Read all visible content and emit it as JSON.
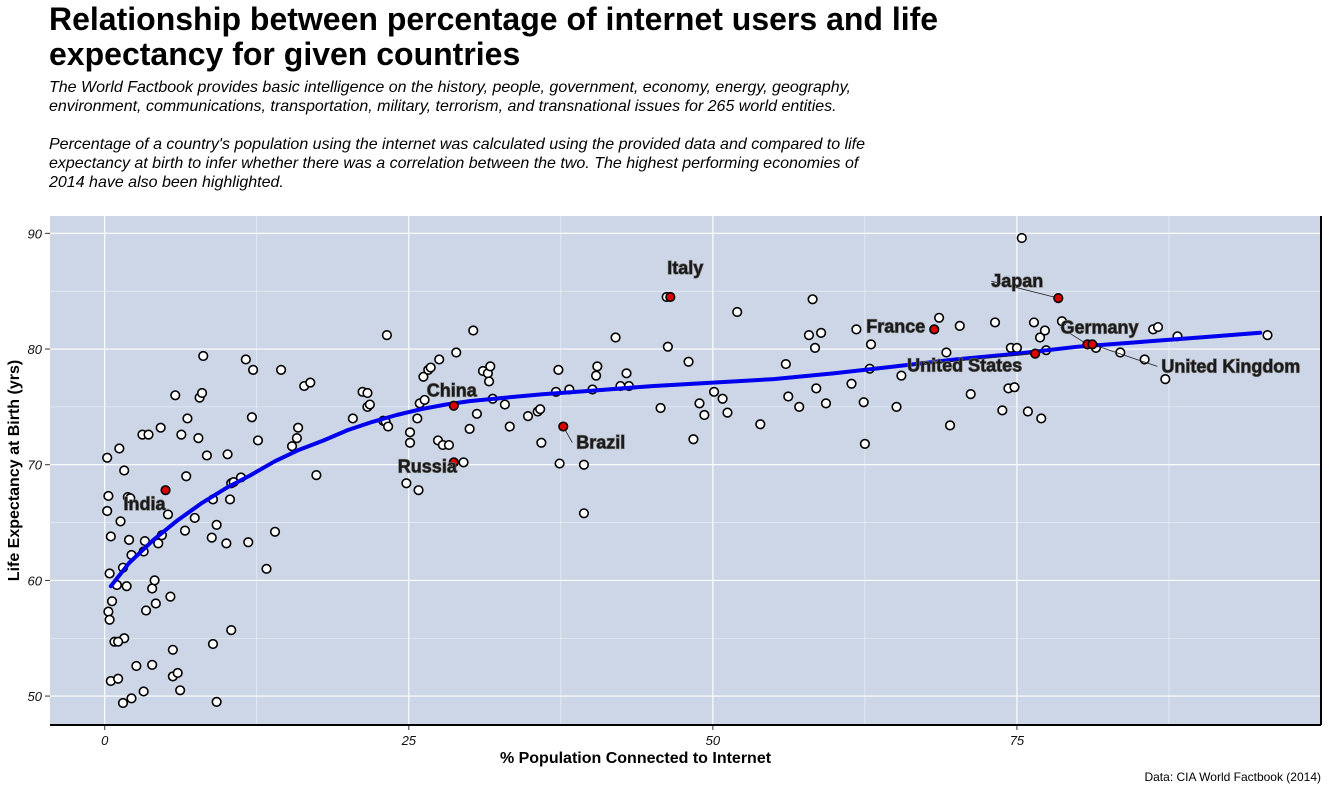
{
  "title": "Relationship between percentage of internet users and life expectancy for given countries",
  "subtitle_1": "The World Factbook provides basic intelligence on the history, people, government, economy, energy, geography, environment, communications, transportation, military, terrorism, and transnational issues for 265 world entities.",
  "subtitle_2": "Percentage of a country's population using the internet was calculated using the provided data and compared to life expectancy at birth to infer whether there was a correlation between the two. The highest performing economies of 2014 have also been highlighted.",
  "caption": "Data: CIA World Factbook (2014)",
  "colors": {
    "panel": "#cdd6e6",
    "grid": "#ffffff",
    "trend": "#0000ee",
    "highlight": "#dd0000",
    "point": "#ffffff",
    "point_stroke": "#000000"
  },
  "chart_data": {
    "type": "scatter",
    "xlabel": "% Population Connected to Internet",
    "ylabel": "Life Expectancy at Birth (yrs)",
    "xlim": [
      -4.5,
      100
    ],
    "ylim": [
      47.5,
      91.5
    ],
    "x_ticks": [
      0,
      25,
      50,
      75
    ],
    "y_ticks": [
      50,
      60,
      70,
      80,
      90
    ],
    "grid": true,
    "trend_line": [
      [
        0.5,
        59.5
      ],
      [
        2,
        61.5
      ],
      [
        4,
        63.5
      ],
      [
        6,
        65.2
      ],
      [
        8,
        66.7
      ],
      [
        10,
        68
      ],
      [
        12,
        69.1
      ],
      [
        14,
        70.3
      ],
      [
        16,
        71.3
      ],
      [
        18,
        72.1
      ],
      [
        20,
        73
      ],
      [
        22,
        73.7
      ],
      [
        24,
        74.3
      ],
      [
        26,
        74.8
      ],
      [
        28,
        75.2
      ],
      [
        30,
        75.5
      ],
      [
        33,
        75.8
      ],
      [
        36,
        76.1
      ],
      [
        40,
        76.4
      ],
      [
        45,
        76.8
      ],
      [
        50,
        77.1
      ],
      [
        55,
        77.4
      ],
      [
        60,
        77.9
      ],
      [
        65,
        78.5
      ],
      [
        70,
        79.1
      ],
      [
        75,
        79.6
      ],
      [
        80,
        80.2
      ],
      [
        85,
        80.6
      ],
      [
        90,
        81
      ],
      [
        95,
        81.4
      ]
    ],
    "highlighted": [
      {
        "name": "India",
        "x": 5,
        "y": 67.8
      },
      {
        "name": "China",
        "x": 28.7,
        "y": 75.1
      },
      {
        "name": "Russia",
        "x": 28.7,
        "y": 70.2
      },
      {
        "name": "Brazil",
        "x": 37.7,
        "y": 73.3
      },
      {
        "name": "Italy",
        "x": 46.5,
        "y": 84.5
      },
      {
        "name": "France",
        "x": 68.2,
        "y": 81.7
      },
      {
        "name": "Japan",
        "x": 78.4,
        "y": 84.4
      },
      {
        "name": "Germany",
        "x": 80.8,
        "y": 80.4
      },
      {
        "name": "United States",
        "x": 76.5,
        "y": 79.6
      },
      {
        "name": "United Kingdom",
        "x": 81.2,
        "y": 80.4
      }
    ],
    "points": [
      [
        0.2,
        70.6
      ],
      [
        0.3,
        67.3
      ],
      [
        0.2,
        66
      ],
      [
        0.5,
        63.8
      ],
      [
        0.3,
        57.3
      ],
      [
        0.4,
        56.6
      ],
      [
        0.6,
        58.2
      ],
      [
        0.4,
        60.6
      ],
      [
        0.8,
        54.7
      ],
      [
        0.5,
        51.3
      ],
      [
        1.1,
        51.5
      ],
      [
        1.5,
        49.4
      ],
      [
        1.2,
        71.4
      ],
      [
        1.6,
        69.5
      ],
      [
        1.9,
        67.2
      ],
      [
        1.3,
        65.1
      ],
      [
        1.5,
        61.1
      ],
      [
        1.8,
        59.5
      ],
      [
        1,
        59.6
      ],
      [
        1.6,
        55
      ],
      [
        1.1,
        54.7
      ],
      [
        2.1,
        67.1
      ],
      [
        2,
        63.5
      ],
      [
        2.2,
        62.2
      ],
      [
        2.6,
        52.6
      ],
      [
        2.2,
        49.8
      ],
      [
        3.1,
        72.6
      ],
      [
        3.3,
        63.4
      ],
      [
        3.2,
        62.5
      ],
      [
        3.4,
        57.4
      ],
      [
        3.2,
        50.4
      ],
      [
        3.6,
        72.6
      ],
      [
        3.9,
        59.3
      ],
      [
        4.1,
        60
      ],
      [
        4.2,
        58
      ],
      [
        4.4,
        63.2
      ],
      [
        4.7,
        63.9
      ],
      [
        5.2,
        65.7
      ],
      [
        5.4,
        58.6
      ],
      [
        5.6,
        54
      ],
      [
        5.6,
        51.7
      ],
      [
        6,
        52
      ],
      [
        6.2,
        50.5
      ],
      [
        3.9,
        52.7
      ],
      [
        4.6,
        73.2
      ],
      [
        5.8,
        76
      ],
      [
        6.3,
        72.6
      ],
      [
        6.8,
        74
      ],
      [
        6.7,
        69
      ],
      [
        6.6,
        64.3
      ],
      [
        7.4,
        65.4
      ],
      [
        7.7,
        72.3
      ],
      [
        7.8,
        75.8
      ],
      [
        8,
        76.2
      ],
      [
        8.4,
        70.8
      ],
      [
        8.1,
        79.4
      ],
      [
        8.9,
        67
      ],
      [
        9.2,
        64.8
      ],
      [
        8.8,
        63.7
      ],
      [
        8.9,
        54.5
      ],
      [
        9.2,
        49.5
      ],
      [
        10.1,
        70.9
      ],
      [
        10.4,
        68.4
      ],
      [
        10.6,
        68.5
      ],
      [
        10.3,
        67
      ],
      [
        10,
        63.2
      ],
      [
        10.4,
        55.7
      ],
      [
        11.2,
        68.9
      ],
      [
        11.6,
        79.1
      ],
      [
        12.1,
        74.1
      ],
      [
        12.2,
        78.2
      ],
      [
        12.6,
        72.1
      ],
      [
        11.8,
        63.3
      ],
      [
        13.3,
        61
      ],
      [
        14,
        64.2
      ],
      [
        14.5,
        78.2
      ],
      [
        15.4,
        71.6
      ],
      [
        15.8,
        72.3
      ],
      [
        15.9,
        73.2
      ],
      [
        16.4,
        76.8
      ],
      [
        16.9,
        77.1
      ],
      [
        17.4,
        69.1
      ],
      [
        20.4,
        74
      ],
      [
        21.2,
        76.3
      ],
      [
        21.6,
        75
      ],
      [
        21.6,
        76.2
      ],
      [
        21.8,
        75.2
      ],
      [
        22.9,
        73.8
      ],
      [
        23.1,
        73.7
      ],
      [
        23.2,
        81.2
      ],
      [
        23.3,
        73.3
      ],
      [
        24.8,
        68.4
      ],
      [
        25.1,
        71.9
      ],
      [
        25.1,
        72.8
      ],
      [
        25.7,
        74
      ],
      [
        25.8,
        67.8
      ],
      [
        25.9,
        75.3
      ],
      [
        26.2,
        77.6
      ],
      [
        26.3,
        75.6
      ],
      [
        26.6,
        78.2
      ],
      [
        26.8,
        78.4
      ],
      [
        27.4,
        72.1
      ],
      [
        27.5,
        79.1
      ],
      [
        27.8,
        71.7
      ],
      [
        28.3,
        71.7
      ],
      [
        28.9,
        79.7
      ],
      [
        29.5,
        70.2
      ],
      [
        30,
        73.1
      ],
      [
        30.3,
        81.6
      ],
      [
        30.6,
        74.4
      ],
      [
        31.1,
        78.1
      ],
      [
        31.5,
        77.9
      ],
      [
        31.6,
        77.2
      ],
      [
        31.7,
        78.5
      ],
      [
        31.9,
        75.7
      ],
      [
        32.9,
        75.2
      ],
      [
        33.3,
        73.3
      ],
      [
        34.8,
        74.2
      ],
      [
        35.6,
        74.6
      ],
      [
        35.8,
        74.8
      ],
      [
        35.9,
        71.9
      ],
      [
        37.1,
        76.3
      ],
      [
        37.3,
        78.2
      ],
      [
        38.2,
        76.5
      ],
      [
        37.4,
        70.1
      ],
      [
        39.4,
        65.8
      ],
      [
        39.4,
        70
      ],
      [
        40.1,
        76.5
      ],
      [
        40.4,
        77.7
      ],
      [
        40.5,
        78.5
      ],
      [
        42,
        81
      ],
      [
        42.4,
        76.8
      ],
      [
        43.1,
        76.8
      ],
      [
        42.9,
        77.9
      ],
      [
        45.7,
        74.9
      ],
      [
        46.2,
        84.5
      ],
      [
        46.3,
        80.2
      ],
      [
        48,
        78.9
      ],
      [
        48.4,
        72.2
      ],
      [
        48.9,
        75.3
      ],
      [
        49.3,
        74.3
      ],
      [
        50.1,
        76.3
      ],
      [
        50.8,
        75.7
      ],
      [
        51.2,
        74.5
      ],
      [
        52,
        83.2
      ],
      [
        53.9,
        73.5
      ],
      [
        56,
        78.7
      ],
      [
        56.2,
        75.9
      ],
      [
        57.1,
        75
      ],
      [
        57.9,
        81.2
      ],
      [
        58.2,
        84.3
      ],
      [
        58.4,
        80.1
      ],
      [
        58.5,
        76.6
      ],
      [
        58.9,
        81.4
      ],
      [
        59.3,
        75.3
      ],
      [
        61.4,
        77
      ],
      [
        61.8,
        81.7
      ],
      [
        62.4,
        75.4
      ],
      [
        62.5,
        71.8
      ],
      [
        62.9,
        78.3
      ],
      [
        63,
        80.4
      ],
      [
        65.1,
        75
      ],
      [
        65.5,
        77.7
      ],
      [
        68.6,
        82.7
      ],
      [
        69.2,
        79.7
      ],
      [
        69.5,
        73.4
      ],
      [
        70.3,
        82
      ],
      [
        71.2,
        76.1
      ],
      [
        73.2,
        82.3
      ],
      [
        73.8,
        74.7
      ],
      [
        74.3,
        76.6
      ],
      [
        74.5,
        80.1
      ],
      [
        74.8,
        76.7
      ],
      [
        75,
        80.1
      ],
      [
        75.4,
        89.6
      ],
      [
        75.9,
        74.6
      ],
      [
        76.4,
        82.3
      ],
      [
        76.9,
        81
      ],
      [
        77.3,
        81.6
      ],
      [
        77.4,
        79.9
      ],
      [
        77,
        74
      ],
      [
        78.7,
        82.4
      ],
      [
        81.5,
        80.1
      ],
      [
        83.5,
        79.7
      ],
      [
        85.5,
        79.1
      ],
      [
        86.2,
        81.7
      ],
      [
        86.6,
        81.9
      ],
      [
        87.2,
        77.4
      ],
      [
        88.2,
        81.1
      ],
      [
        95.6,
        81.2
      ]
    ]
  }
}
